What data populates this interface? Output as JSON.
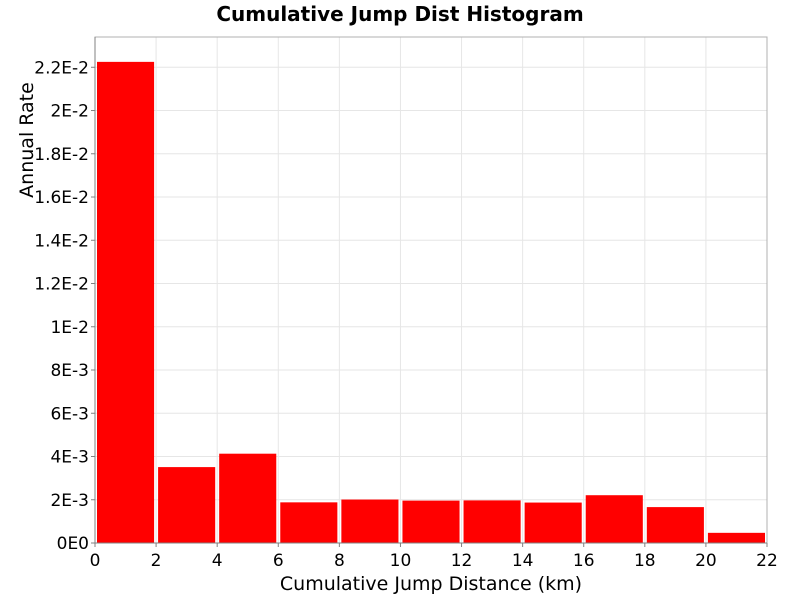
{
  "chart_data": {
    "type": "bar",
    "title": "Cumulative Jump Dist Histogram",
    "xlabel": "Cumulative Jump Distance (km)",
    "ylabel": "Annual Rate",
    "xlim": [
      0,
      22
    ],
    "ylim": [
      0,
      0.0234
    ],
    "grid": true,
    "bar_color": "#ff0000",
    "x_ticks": [
      {
        "value": 0,
        "label": "0"
      },
      {
        "value": 2,
        "label": "2"
      },
      {
        "value": 4,
        "label": "4"
      },
      {
        "value": 6,
        "label": "6"
      },
      {
        "value": 8,
        "label": "8"
      },
      {
        "value": 10,
        "label": "10"
      },
      {
        "value": 12,
        "label": "12"
      },
      {
        "value": 14,
        "label": "14"
      },
      {
        "value": 16,
        "label": "16"
      },
      {
        "value": 18,
        "label": "18"
      },
      {
        "value": 20,
        "label": "20"
      },
      {
        "value": 22,
        "label": "22"
      }
    ],
    "y_ticks": [
      {
        "value": 0,
        "label": "0E0"
      },
      {
        "value": 0.002,
        "label": "2E-3"
      },
      {
        "value": 0.004,
        "label": "4E-3"
      },
      {
        "value": 0.006,
        "label": "6E-3"
      },
      {
        "value": 0.008,
        "label": "8E-3"
      },
      {
        "value": 0.01,
        "label": "1E-2"
      },
      {
        "value": 0.012,
        "label": "1.2E-2"
      },
      {
        "value": 0.014,
        "label": "1.4E-2"
      },
      {
        "value": 0.016,
        "label": "1.6E-2"
      },
      {
        "value": 0.018,
        "label": "1.8E-2"
      },
      {
        "value": 0.02,
        "label": "2E-2"
      },
      {
        "value": 0.022,
        "label": "2.2E-2"
      }
    ],
    "bins": [
      {
        "x0": 0,
        "x1": 2,
        "value": 0.02225
      },
      {
        "x0": 2,
        "x1": 4,
        "value": 0.00351
      },
      {
        "x0": 4,
        "x1": 6,
        "value": 0.00413
      },
      {
        "x0": 6,
        "x1": 8,
        "value": 0.00188
      },
      {
        "x0": 8,
        "x1": 10,
        "value": 0.00201
      },
      {
        "x0": 10,
        "x1": 12,
        "value": 0.00196
      },
      {
        "x0": 12,
        "x1": 14,
        "value": 0.00197
      },
      {
        "x0": 14,
        "x1": 16,
        "value": 0.00187
      },
      {
        "x0": 16,
        "x1": 18,
        "value": 0.00221
      },
      {
        "x0": 18,
        "x1": 20,
        "value": 0.00166
      },
      {
        "x0": 20,
        "x1": 22,
        "value": 0.00047
      }
    ]
  }
}
